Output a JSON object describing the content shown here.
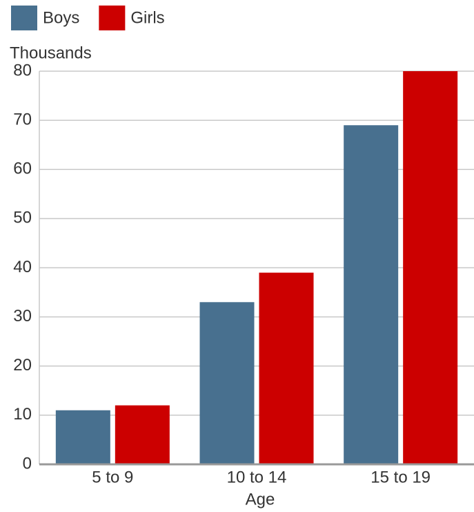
{
  "chart_data": {
    "type": "bar",
    "y_label": "Thousands",
    "x_label": "Age",
    "categories": [
      "5 to 9",
      "10 to 14",
      "15 to 19"
    ],
    "series": [
      {
        "name": "Boys",
        "color": "#48708f",
        "values": [
          11,
          33,
          69
        ]
      },
      {
        "name": "Girls",
        "color": "#cc0000",
        "values": [
          12,
          39,
          80
        ]
      }
    ],
    "ylim": [
      0,
      80
    ],
    "yticks": [
      0,
      10,
      20,
      30,
      40,
      50,
      60,
      70,
      80
    ],
    "grid": true,
    "legend": "top"
  }
}
